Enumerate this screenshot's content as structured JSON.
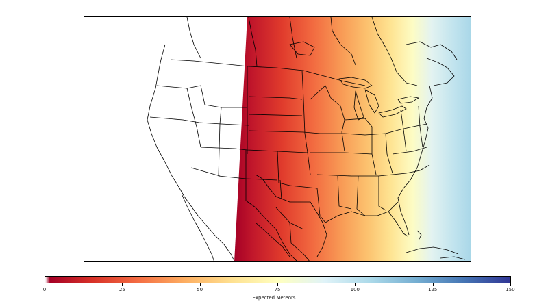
{
  "colorbar": {
    "label": "Expected Meteors",
    "min": 0,
    "max": 150,
    "ticks": [
      {
        "value": 0,
        "label": "0"
      },
      {
        "value": 25,
        "label": "25"
      },
      {
        "value": 50,
        "label": "50"
      },
      {
        "value": 75,
        "label": "75"
      },
      {
        "value": 100,
        "label": "100"
      },
      {
        "value": 125,
        "label": "125"
      },
      {
        "value": 150,
        "label": "150"
      }
    ],
    "colormap": [
      "#ffffff",
      "#a50026",
      "#d73027",
      "#f46d43",
      "#fdae61",
      "#fee090",
      "#ffffbf",
      "#e0f3f8",
      "#abd9e9",
      "#74add1",
      "#4575b4",
      "#313695"
    ]
  },
  "map": {
    "region": "North America",
    "shading_left_to_right": [
      "#a50026",
      "#c2182b",
      "#e03b2c",
      "#f26a40",
      "#f89a55",
      "#fcc26f",
      "#fee493",
      "#fdfcc4",
      "#e3f3f1",
      "#c2e4ee",
      "#a8d6e8"
    ]
  }
}
